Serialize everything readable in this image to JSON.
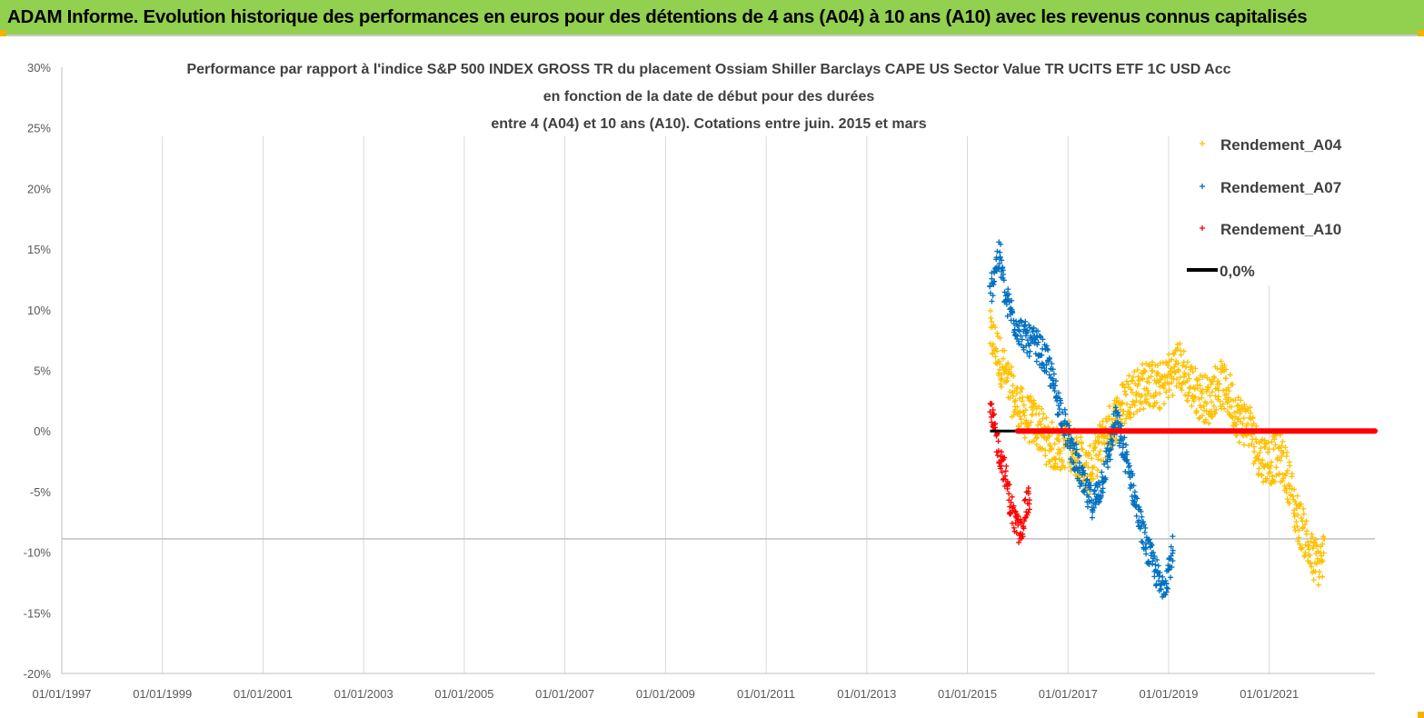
{
  "banner": {
    "title": "ADAM Informe. Evolution historique des performances en euros pour des détentions de 4 ans (A04) à 10 ans (A10) avec les revenus connus capitalisés",
    "background": "#92d050"
  },
  "chart_data": {
    "type": "scatter",
    "title": [
      "Performance par rapport à l'indice S&P 500 INDEX GROSS TR  du placement Ossiam Shiller Barclays CAPE US Sector Value TR UCITS ETF 1C USD Acc",
      "en fonction de la date de début pour des durées",
      "entre 4 (A04) et 10 ans (A10). Cotations entre juin. 2015 et mars"
    ],
    "xlabel": "",
    "ylabel": "",
    "x_ticks": [
      "01/01/1997",
      "01/01/1999",
      "01/01/2001",
      "01/01/2003",
      "01/01/2005",
      "01/01/2007",
      "01/01/2009",
      "01/01/2011",
      "01/01/2013",
      "01/01/2015",
      "01/01/2017",
      "01/01/2019",
      "01/01/2021"
    ],
    "xlim": [
      1997.0,
      2023.1
    ],
    "y_ticks": [
      "30%",
      "25%",
      "20%",
      "15%",
      "10%",
      "5%",
      "0%",
      "-5%",
      "-10%",
      "-15%",
      "-20%"
    ],
    "ylim": [
      -20,
      30
    ],
    "grid": "vertical",
    "legend_position": "top-right",
    "series": [
      {
        "name": "Rendement_A04",
        "color": "#ffc000",
        "marker": "+",
        "points": [
          [
            2015.45,
            8.0
          ],
          [
            2015.6,
            6.5
          ],
          [
            2015.8,
            4.0
          ],
          [
            2016.0,
            2.0
          ],
          [
            2016.2,
            1.0
          ],
          [
            2016.4,
            0.5
          ],
          [
            2016.6,
            -1.0
          ],
          [
            2016.8,
            -1.5
          ],
          [
            2017.0,
            -1.0
          ],
          [
            2017.2,
            -2.0
          ],
          [
            2017.4,
            -3.5
          ],
          [
            2017.6,
            -1.5
          ],
          [
            2017.8,
            0.0
          ],
          [
            2018.0,
            1.5
          ],
          [
            2018.2,
            3.0
          ],
          [
            2018.4,
            3.5
          ],
          [
            2018.6,
            4.0
          ],
          [
            2018.8,
            3.5
          ],
          [
            2019.0,
            4.5
          ],
          [
            2019.2,
            5.5
          ],
          [
            2019.4,
            4.0
          ],
          [
            2019.6,
            3.0
          ],
          [
            2019.8,
            2.5
          ],
          [
            2020.0,
            4.0
          ],
          [
            2020.2,
            3.0
          ],
          [
            2020.4,
            1.0
          ],
          [
            2020.6,
            0.5
          ],
          [
            2020.8,
            -2.0
          ],
          [
            2021.0,
            -2.5
          ],
          [
            2021.2,
            -2.0
          ],
          [
            2021.4,
            -4.0
          ],
          [
            2021.5,
            -6.5
          ],
          [
            2021.7,
            -8.5
          ],
          [
            2021.85,
            -10.5
          ],
          [
            2022.0,
            -11.0
          ],
          [
            2022.1,
            -10.0
          ]
        ]
      },
      {
        "name": "Rendement_A07",
        "color": "#0070c0",
        "marker": "+",
        "points": [
          [
            2015.45,
            11.0
          ],
          [
            2015.55,
            13.5
          ],
          [
            2015.65,
            14.5
          ],
          [
            2015.75,
            11.0
          ],
          [
            2015.85,
            10.0
          ],
          [
            2016.0,
            8.5
          ],
          [
            2016.2,
            7.5
          ],
          [
            2016.4,
            7.0
          ],
          [
            2016.6,
            5.5
          ],
          [
            2016.8,
            2.5
          ],
          [
            2017.0,
            -0.5
          ],
          [
            2017.2,
            -3.0
          ],
          [
            2017.35,
            -5.0
          ],
          [
            2017.5,
            -6.0
          ],
          [
            2017.65,
            -4.5
          ],
          [
            2017.8,
            -2.0
          ],
          [
            2017.95,
            1.0
          ],
          [
            2018.1,
            -1.5
          ],
          [
            2018.25,
            -4.0
          ],
          [
            2018.4,
            -7.0
          ],
          [
            2018.55,
            -9.5
          ],
          [
            2018.7,
            -11.0
          ],
          [
            2018.85,
            -13.0
          ],
          [
            2019.0,
            -11.5
          ],
          [
            2019.1,
            -9.5
          ]
        ]
      },
      {
        "name": "Rendement_A10",
        "color": "#ff0000",
        "marker": "+",
        "points": [
          [
            2015.45,
            1.5
          ],
          [
            2015.55,
            0.0
          ],
          [
            2015.65,
            -2.0
          ],
          [
            2015.75,
            -3.5
          ],
          [
            2015.85,
            -6.0
          ],
          [
            2015.95,
            -7.5
          ],
          [
            2016.05,
            -8.5
          ],
          [
            2016.15,
            -6.5
          ],
          [
            2016.25,
            -5.5
          ]
        ]
      },
      {
        "name": "0,0%",
        "color": "#000000",
        "marker": "line",
        "points": [
          [
            2015.45,
            0.0
          ],
          [
            2016.0,
            0.0
          ]
        ]
      }
    ],
    "zero_highlight": {
      "color": "#ff0000",
      "x_range": [
        2016.0,
        2023.1
      ],
      "value": 0.0
    },
    "reference_line": {
      "value": -8.9,
      "color": "#bfbfbf"
    }
  }
}
